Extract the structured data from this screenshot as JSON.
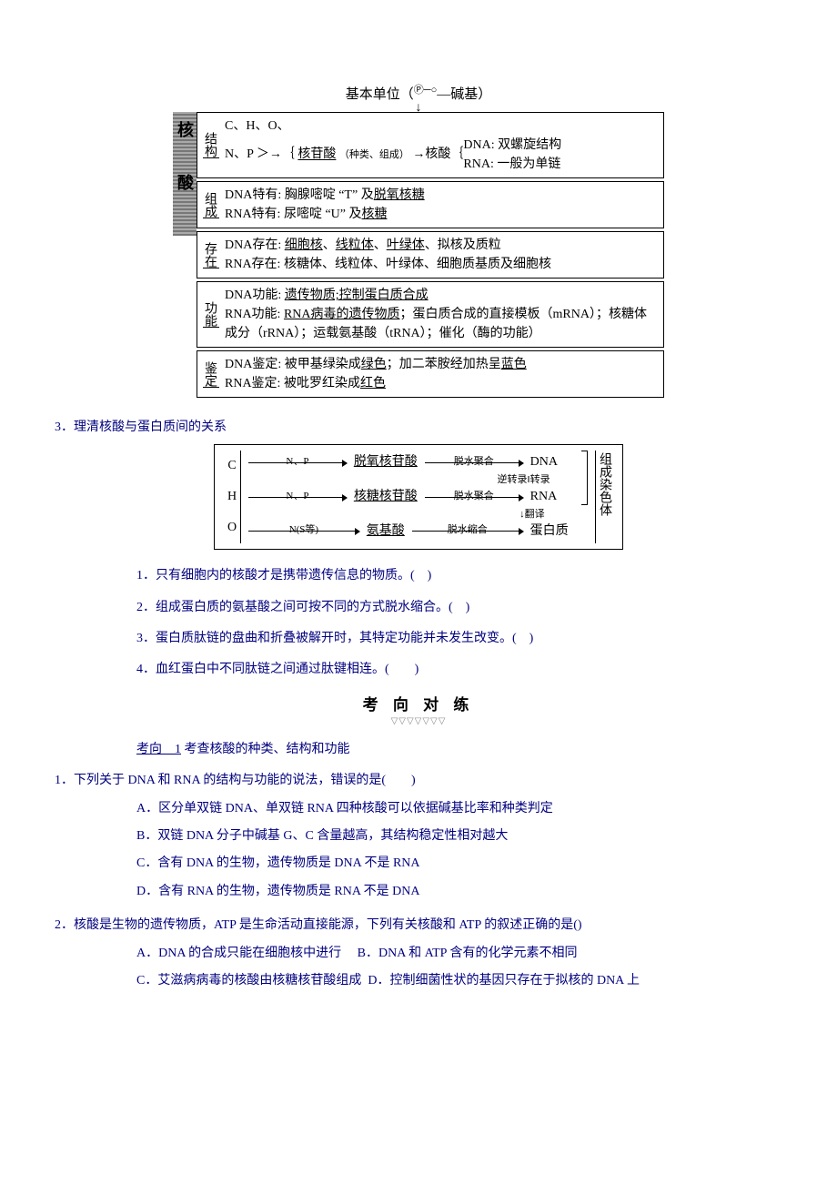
{
  "diagram1": {
    "top": "基本单位（",
    "top_suffix": "—碱基）",
    "phos_glyph": "Ⓟ─○",
    "band": "核酸",
    "sections": [
      {
        "label": "结构",
        "body_html": "C、H、O、<br>N、P ＞→｛ <span class='u'>核苷酸</span> <span class='small'>（种类、组成）</span> →核酸｛<span style='display:inline-block;vertical-align:middle;'>DNA: 双螺旋结构<br>RNA: 一般为单链</span>"
      },
      {
        "label": "组成",
        "body_html": "DNA特有: 胸腺嘧啶 “T” 及<span class='u'>脱氧核糖</span><br>RNA特有: 尿嘧啶 “U” 及<span class='u'>核糖</span>"
      },
      {
        "label": "存在",
        "body_html": "DNA存在: <span class='u'>细胞核</span>、<span class='u'>线粒体</span>、<span class='u'>叶绿体</span>、拟核及质粒<br>RNA存在: 核糖体、线粒体、叶绿体、细胞质基质及细胞核"
      },
      {
        "label": "功能",
        "body_html": "DNA功能: <span class='u'>遗传物质;控制蛋白质合成</span><br>RNA功能: <span class='u'>RNA病毒的遗传物质</span>；蛋白质合成的直接模板（mRNA）；核糖体成分（rRNA）；运载氨基酸（tRNA）；催化（酶的功能）"
      },
      {
        "label": "鉴定",
        "body_html": "DNA鉴定: 被甲基绿染成<span class='u'>绿色</span>；加二苯胺经加热呈<span class='u'>蓝色</span><br>RNA鉴定: 被吡罗红染成<span class='u'>红色</span>"
      }
    ]
  },
  "heading3": "3．理清核酸与蛋白质间的关系",
  "diagram2": {
    "left_labels": [
      "C",
      "H",
      "O"
    ],
    "rows": [
      {
        "mid": "N、P",
        "a": "脱氧核苷酸",
        "t": "脱水聚合",
        "b": "DNA"
      },
      {
        "mid": "N、P",
        "a": "核糖核苷酸",
        "t": "脱水聚合",
        "b": "RNA"
      },
      {
        "mid": "N(S等)",
        "a": "氨基酸",
        "t": "脱水缩合",
        "b": "蛋白质"
      }
    ],
    "between12": "逆转录‖转录",
    "between23": "↓翻译",
    "right": "组成染色体"
  },
  "tf": [
    "1．只有细胞内的核酸才是携带遗传信息的物质。(　)",
    "2．组成蛋白质的氨基酸之间可按不同的方式脱水缩合。(　)",
    "3．蛋白质肽链的盘曲和折叠被解开时，其特定功能并未发生改变。(　)",
    "4．血红蛋白中不同肽链之间通过肽键相连。(　　)"
  ],
  "kx_title": "考 向 对 练",
  "kx_link": "考向　1",
  "kx_link_suffix": " 考查核酸的种类、结构和功能",
  "q1": {
    "stem": "1．下列关于 DNA 和 RNA 的结构与功能的说法，错误的是(　　)",
    "opts": [
      "A．区分单双链 DNA、单双链 RNA 四种核酸可以依据碱基比率和种类判定",
      "B．双链 DNA 分子中碱基 G、C 含量越高，其结构稳定性相对越大",
      "C．含有 DNA 的生物，遗传物质是 DNA 不是 RNA",
      "D．含有 RNA 的生物，遗传物质是 RNA 不是 DNA"
    ]
  },
  "q2": {
    "stem": "2．核酸是生物的遗传物质，ATP 是生命活动直接能源，下列有关核酸和 ATP 的叙述正确的是()",
    "row1_a": "A．DNA 的合成只能在细胞核中进行",
    "row1_b": "B．DNA 和 ATP 含有的化学元素不相同",
    "row2_a": "C．艾滋病病毒的核酸由核糖核苷酸组成",
    "row2_b": "D．控制细菌性状的基因只存在于拟核的 DNA 上"
  },
  "colors": {
    "text": "#00007f",
    "black": "#000000",
    "bg": "#ffffff"
  }
}
